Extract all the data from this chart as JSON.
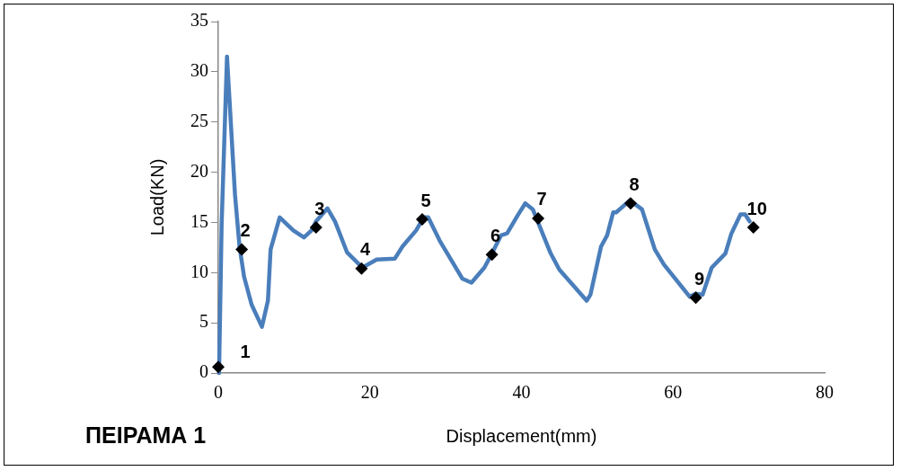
{
  "chart_data": {
    "type": "line",
    "title": "ΠΕΙΡΑΜΑ 1",
    "xlabel": "Displacement(mm)",
    "ylabel": "Load(KN)",
    "xlim": [
      0,
      80
    ],
    "xticks": [
      0,
      20,
      40,
      60,
      80
    ],
    "ylim": [
      0,
      35
    ],
    "yticks": [
      0,
      5,
      10,
      15,
      20,
      25,
      30,
      35
    ],
    "grid": false,
    "legend": false,
    "annotations": [
      {
        "text": "1",
        "x": 0,
        "y": 0.6
      },
      {
        "text": "2",
        "x": 3.1,
        "y": 12.3
      },
      {
        "text": "3",
        "x": 12.9,
        "y": 14.5
      },
      {
        "text": "4",
        "x": 18.9,
        "y": 10.4
      },
      {
        "text": "5",
        "x": 26.9,
        "y": 15.3
      },
      {
        "text": "6",
        "x": 36.1,
        "y": 11.8
      },
      {
        "text": "7",
        "x": 42.2,
        "y": 15.4
      },
      {
        "text": "8",
        "x": 54.4,
        "y": 16.9
      },
      {
        "text": "9",
        "x": 63.0,
        "y": 7.5
      },
      {
        "text": "10",
        "x": 70.6,
        "y": 14.5
      }
    ],
    "series": [
      {
        "color": "#4a7ebb",
        "marker": "none",
        "x": [
          0.1,
          0.44,
          1.15,
          2.2,
          2.8,
          3.4,
          4.4,
          5.76,
          6.55,
          6.9,
          8.1,
          9.9,
          11.3,
          12.3,
          12.9,
          14.4,
          15.4,
          17.0,
          19.0,
          20.9,
          23.3,
          24.3,
          26.1,
          27.1,
          27.7,
          29.2,
          32.2,
          33.4,
          35.1,
          36.1,
          37.3,
          38.1,
          39.5,
          40.5,
          41.5,
          43.8,
          45.0,
          48.6,
          49.1,
          50.5,
          51.3,
          52.1,
          52.5,
          54.3,
          55.9,
          57.6,
          58.8,
          62.2,
          63.0,
          63.9,
          65.1,
          66.9,
          67.7,
          68.9,
          69.5,
          70.1
        ],
        "values": [
          0,
          14.8,
          31.5,
          17.8,
          12.6,
          9.6,
          6.8,
          4.6,
          7.2,
          12.3,
          15.5,
          14.2,
          13.5,
          14.2,
          15.1,
          16.4,
          15.1,
          12.0,
          10.5,
          11.3,
          11.4,
          12.6,
          14.2,
          15.5,
          15.5,
          13.2,
          9.4,
          9.0,
          10.5,
          11.9,
          13.7,
          13.9,
          15.7,
          16.9,
          16.3,
          12.0,
          10.3,
          7.2,
          7.8,
          12.6,
          13.7,
          16.0,
          16.0,
          17.2,
          16.3,
          12.3,
          10.8,
          7.6,
          7.9,
          7.8,
          10.5,
          11.9,
          13.9,
          15.8,
          15.8,
          15.1
        ]
      },
      {
        "type": "scatter",
        "color": "#000000",
        "marker": "diamond",
        "x": [
          0,
          3.1,
          12.9,
          18.9,
          26.9,
          36.1,
          42.2,
          54.4,
          63.0,
          70.6
        ],
        "values": [
          0.6,
          12.3,
          14.5,
          10.4,
          15.3,
          11.8,
          15.4,
          16.9,
          7.5,
          14.5
        ]
      }
    ]
  }
}
